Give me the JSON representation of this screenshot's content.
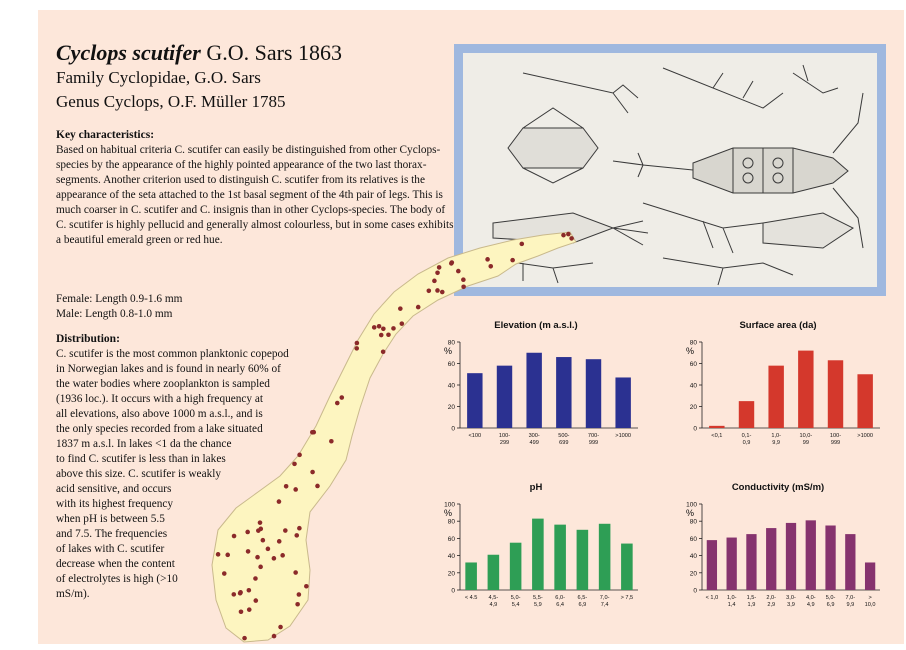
{
  "header": {
    "species": "Cyclops scutifer",
    "author": "G.O. Sars 1863",
    "family": "Family Cyclopidae, G.O. Sars",
    "genus": "Genus Cyclops, O.F. Müller 1785"
  },
  "key_characteristics": {
    "heading": "Key characteristics:",
    "text": "Based on habitual criteria C. scutifer can easily be distinguished from other Cyclops-species by the appearance of the highly pointed appearance of the two last thorax-segments. Another criterion used to distinguish C. scutifer from its relatives is the appearance of the seta attached to the 1st basal segment of the 4th pair of legs. This is much coarser in C. scutifer and C. insignis than in other Cyclops-species. The body of C. scutifer is highly pellucid and generally almost colourless, but in some cases exhibits a beautiful emerald green or red hue."
  },
  "measurements": {
    "female": "Female: Length 0.9-1.6 mm",
    "male": "Male: Length 0.8-1.0 mm"
  },
  "distribution": {
    "heading": "Distribution:",
    "lines": [
      "C. scutifer is the most common planktonic copepod",
      "in Norwegian lakes and is found in nearly 60% of",
      "the water bodies where zooplankton is sampled",
      "(1936 loc.). It occurs with a high frequency at",
      "all elevations, also above 1000 m a.s.l., and is",
      "the only species recorded from a lake situated",
      "1837 m a.s.l. In lakes <1 da the chance",
      "to find C. scutifer is less than in lakes",
      "above this size. C. scutifer is weakly",
      "acid sensitive, and occurs",
      "with its highest frequency",
      "when pH is between 5.5",
      "and 7.5. The frequencies",
      "of lakes with C. scutifer",
      "decrease when the content",
      "of electrolytes is high (>10",
      "mS/m)."
    ]
  },
  "colors": {
    "background": "#fde7da",
    "frame": "#9fb8df",
    "map_land": "#fdf5c0",
    "map_dots": "#8b2a2a"
  },
  "chart_data": [
    {
      "type": "bar",
      "title": "Elevation (m a.s.l.)",
      "ylabel": "%",
      "categories": [
        "<100",
        "100-299",
        "300-499",
        "500-699",
        "700-999",
        ">1000"
      ],
      "values": [
        51,
        58,
        70,
        66,
        64,
        47
      ],
      "yticks": [
        0,
        20,
        40,
        60,
        80
      ],
      "ylim": [
        0,
        80
      ],
      "color": "#2b3191"
    },
    {
      "type": "bar",
      "title": "Surface area (da)",
      "ylabel": "%",
      "categories": [
        "<0,1",
        "0,1-0,9",
        "1,0-9,9",
        "10,0-99",
        "100-999",
        ">1000"
      ],
      "values": [
        2,
        25,
        58,
        72,
        63,
        50
      ],
      "yticks": [
        0,
        20,
        40,
        60,
        80
      ],
      "ylim": [
        0,
        80
      ],
      "color": "#d4382c"
    },
    {
      "type": "bar",
      "title": "pH",
      "ylabel": "%",
      "categories": [
        "< 4.5",
        "4,5-4,9",
        "5,0-5,4",
        "5,5-5,9",
        "6,0-6,4",
        "6,5-6,9",
        "7,0-7,4",
        "> 7,5"
      ],
      "values": [
        32,
        41,
        55,
        83,
        76,
        70,
        77,
        54
      ],
      "yticks": [
        0,
        20,
        40,
        60,
        80,
        100
      ],
      "ylim": [
        0,
        100
      ],
      "color": "#2e9e55"
    },
    {
      "type": "bar",
      "title": "Conductivity (mS/m)",
      "ylabel": "%",
      "categories": [
        "< 1,0",
        "1,0-1,4",
        "1,5-1,9",
        "2,0-2,9",
        "3,0-3,9",
        "4,0-4,9",
        "5,0-6,9",
        "7,0-9,9",
        "> 10,0"
      ],
      "values": [
        58,
        61,
        65,
        72,
        78,
        81,
        75,
        65,
        32
      ],
      "yticks": [
        0,
        20,
        40,
        60,
        80,
        100
      ],
      "ylim": [
        0,
        100
      ],
      "color": "#86336e"
    }
  ]
}
